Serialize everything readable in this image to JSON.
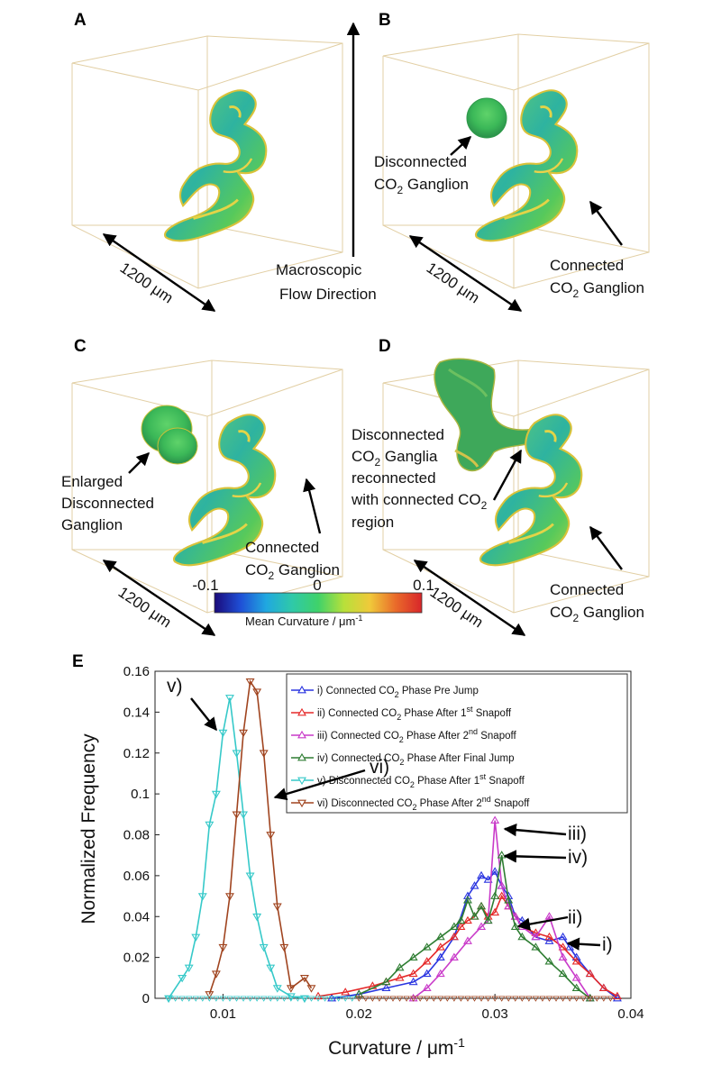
{
  "panels": {
    "A": {
      "label": "A",
      "flow": [
        "Macroscopic",
        "Flow Direction"
      ],
      "scale": "1200 μm"
    },
    "B": {
      "label": "B",
      "disc": [
        "Disconnected",
        "CO",
        "2",
        " Ganglion"
      ],
      "conn": [
        "Connected",
        "CO",
        "2",
        " Ganglion"
      ],
      "scale": "1200 μm"
    },
    "C": {
      "label": "C",
      "enl": [
        "Enlarged",
        "Disconnected",
        "Ganglion"
      ],
      "conn": [
        "Connected",
        "CO",
        "2",
        " Ganglion"
      ],
      "scale": "1200 μm"
    },
    "D": {
      "label": "D",
      "recon": [
        "Disconnected",
        "CO",
        "2",
        " Ganglia",
        "reconnected",
        "with connected CO",
        "2",
        "region"
      ],
      "conn": [
        "Connected",
        "CO",
        "2",
        " Ganglion"
      ],
      "scale": "1200 μm"
    }
  },
  "colorbar": {
    "min": "-0.1",
    "mid": "0",
    "max": "0.1",
    "label": "Mean Curvature / μm",
    "label_sup": "-1",
    "colors": [
      "#1a0a7a",
      "#1f4fd6",
      "#20a8e0",
      "#2fc9a8",
      "#3fd26a",
      "#b8e03a",
      "#f0c93a",
      "#e96a2a",
      "#d8262a"
    ]
  },
  "chart_data": {
    "type": "line",
    "panel_label": "E",
    "xlabel": "Curvature / μm",
    "xlabel_sup": "-1",
    "ylabel": "Normalized Frequency",
    "xlim": [
      0.005,
      0.04
    ],
    "ylim": [
      0,
      0.16
    ],
    "xticks": [
      "0.01",
      "0.02",
      "0.03",
      "0.04"
    ],
    "xtick_values": [
      0.01,
      0.02,
      0.03,
      0.04
    ],
    "yticks": [
      "0",
      "0.02",
      "0.04",
      "0.06",
      "0.08",
      "0.1",
      "0.12",
      "0.14",
      "0.16"
    ],
    "ytick_values": [
      0,
      0.02,
      0.04,
      0.06,
      0.08,
      0.1,
      0.12,
      0.14,
      0.16
    ],
    "series": [
      {
        "name": "i) Connected CO2 Phase Pre Jump",
        "legend": [
          "i) Connected CO",
          "2",
          " Phase Pre Jump",
          ""
        ],
        "color": "#2a35e0",
        "marker": "up",
        "x": [
          0.018,
          0.02,
          0.022,
          0.024,
          0.025,
          0.026,
          0.027,
          0.028,
          0.0285,
          0.029,
          0.0295,
          0.03,
          0.0305,
          0.031,
          0.0315,
          0.032,
          0.033,
          0.034,
          0.035,
          0.0355,
          0.036,
          0.037,
          0.038,
          0.039
        ],
        "values": [
          0,
          0.002,
          0.005,
          0.008,
          0.012,
          0.02,
          0.03,
          0.05,
          0.055,
          0.06,
          0.058,
          0.062,
          0.055,
          0.05,
          0.04,
          0.038,
          0.03,
          0.028,
          0.03,
          0.025,
          0.02,
          0.012,
          0.005,
          0
        ]
      },
      {
        "name": "ii) Connected CO2 Phase After 1st Snapoff",
        "legend": [
          "ii) Connected CO",
          "2",
          " Phase After 1",
          "st",
          " Snapoff"
        ],
        "color": "#e52a2a",
        "marker": "up",
        "x": [
          0.017,
          0.019,
          0.021,
          0.022,
          0.023,
          0.024,
          0.025,
          0.026,
          0.027,
          0.0275,
          0.028,
          0.0285,
          0.029,
          0.0295,
          0.03,
          0.0305,
          0.031,
          0.0315,
          0.032,
          0.033,
          0.034,
          0.035,
          0.036,
          0.037,
          0.038,
          0.039
        ],
        "values": [
          0.001,
          0.003,
          0.006,
          0.008,
          0.01,
          0.012,
          0.018,
          0.025,
          0.03,
          0.035,
          0.038,
          0.04,
          0.045,
          0.04,
          0.042,
          0.05,
          0.045,
          0.04,
          0.035,
          0.032,
          0.03,
          0.025,
          0.018,
          0.012,
          0.005,
          0.001
        ]
      },
      {
        "name": "iii) Connected CO2 Phase After 2nd Snapoff",
        "legend": [
          "iii) Connected CO",
          "2",
          " Phase After 2",
          "nd",
          " Snapoff"
        ],
        "color": "#c93ac9",
        "marker": "up",
        "x": [
          0.024,
          0.025,
          0.026,
          0.027,
          0.028,
          0.029,
          0.0295,
          0.03,
          0.0305,
          0.031,
          0.0315,
          0.032,
          0.033,
          0.034,
          0.035,
          0.036,
          0.037
        ],
        "values": [
          0,
          0.005,
          0.012,
          0.02,
          0.028,
          0.035,
          0.038,
          0.087,
          0.055,
          0.045,
          0.04,
          0.035,
          0.03,
          0.04,
          0.02,
          0.01,
          0
        ]
      },
      {
        "name": "iv) Connected CO2 Phase After Final Jump",
        "legend": [
          "iv) Connected CO",
          "2",
          " Phase After Final Jump",
          ""
        ],
        "color": "#2e7d32",
        "marker": "up",
        "x": [
          0.02,
          0.022,
          0.023,
          0.024,
          0.025,
          0.026,
          0.027,
          0.0275,
          0.028,
          0.0285,
          0.029,
          0.0295,
          0.03,
          0.0305,
          0.031,
          0.0315,
          0.032,
          0.033,
          0.034,
          0.035,
          0.036,
          0.037
        ],
        "values": [
          0.002,
          0.008,
          0.015,
          0.02,
          0.025,
          0.03,
          0.035,
          0.038,
          0.048,
          0.04,
          0.045,
          0.038,
          0.05,
          0.07,
          0.048,
          0.035,
          0.03,
          0.025,
          0.018,
          0.012,
          0.005,
          0
        ]
      },
      {
        "name": "v) Disconnected CO2 Phase After 1st Snapoff",
        "legend": [
          "v) Disconnected CO",
          "2",
          " Phase After 1",
          "st",
          " Snapoff"
        ],
        "color": "#36c9c9",
        "marker": "down",
        "x": [
          0.006,
          0.007,
          0.0075,
          0.008,
          0.0085,
          0.009,
          0.0095,
          0.01,
          0.0105,
          0.011,
          0.0115,
          0.012,
          0.0125,
          0.013,
          0.0135,
          0.014,
          0.015,
          0.016
        ],
        "values": [
          0,
          0.01,
          0.015,
          0.03,
          0.05,
          0.085,
          0.1,
          0.13,
          0.147,
          0.12,
          0.09,
          0.06,
          0.04,
          0.025,
          0.015,
          0.005,
          0.001,
          0
        ]
      },
      {
        "name": "vi) Disconnected CO2 Phase After 2nd Snapoff",
        "legend": [
          "vi) Disconnected CO",
          "2",
          " Phase After 2",
          "nd",
          " Snapoff"
        ],
        "color": "#a0441f",
        "marker": "down",
        "x": [
          0.009,
          0.0095,
          0.01,
          0.0105,
          0.011,
          0.0115,
          0.012,
          0.0125,
          0.013,
          0.0135,
          0.014,
          0.0145,
          0.015,
          0.016,
          0.0165
        ],
        "values": [
          0.002,
          0.012,
          0.025,
          0.05,
          0.09,
          0.13,
          0.155,
          0.15,
          0.12,
          0.08,
          0.045,
          0.025,
          0.005,
          0.01,
          0.005
        ]
      }
    ],
    "annotations": [
      "v)",
      "vi)",
      "iii)",
      "iv)",
      "ii)",
      "i)"
    ]
  }
}
